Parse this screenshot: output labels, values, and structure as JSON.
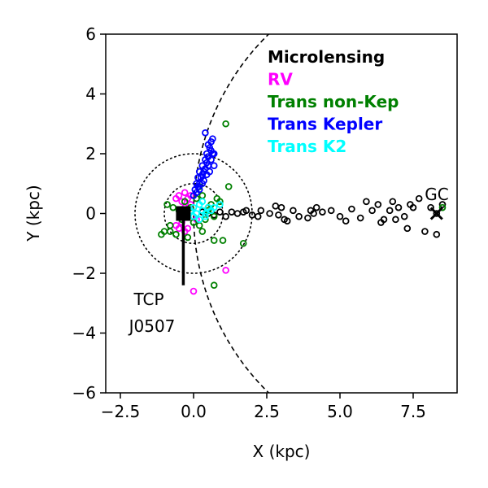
{
  "chart_data": {
    "type": "scatter",
    "xlabel": "X (kpc)",
    "ylabel": "Y (kpc)",
    "xlim": [
      -3,
      9
    ],
    "ylim": [
      -6,
      6
    ],
    "xticks": [
      -2.5,
      0.0,
      2.5,
      5.0,
      7.5
    ],
    "xtick_labels": [
      "−2.5",
      "0.0",
      "2.5",
      "5.0",
      "7.5"
    ],
    "yticks": [
      -6,
      -4,
      -2,
      0,
      2,
      4,
      6
    ],
    "ytick_labels": [
      "−6",
      "−4",
      "−2",
      "0",
      "2",
      "4",
      "6"
    ],
    "legend_position": "top-right",
    "legend": [
      {
        "label": "Microlensing",
        "color": "#000000"
      },
      {
        "label": "RV",
        "color": "#ff00ff"
      },
      {
        "label": "Trans non-Kep",
        "color": "#008000"
      },
      {
        "label": "Trans Kepler",
        "color": "#0000ff"
      },
      {
        "label": "Trans K2",
        "color": "#00ffff"
      }
    ],
    "series": [
      {
        "name": "Microlensing",
        "color": "#000000",
        "points": [
          [
            0.3,
            0.05
          ],
          [
            0.5,
            0.0
          ],
          [
            0.7,
            -0.05
          ],
          [
            0.9,
            0.05
          ],
          [
            1.1,
            -0.1
          ],
          [
            1.3,
            0.05
          ],
          [
            1.5,
            0.0
          ],
          [
            1.7,
            0.05
          ],
          [
            2.0,
            -0.05
          ],
          [
            2.3,
            0.1
          ],
          [
            2.6,
            0.0
          ],
          [
            2.9,
            -0.05
          ],
          [
            3.0,
            0.2
          ],
          [
            3.1,
            -0.2
          ],
          [
            3.4,
            0.1
          ],
          [
            3.6,
            -0.1
          ],
          [
            4.0,
            0.1
          ],
          [
            4.2,
            0.2
          ],
          [
            4.4,
            0.05
          ],
          [
            4.7,
            0.1
          ],
          [
            5.2,
            -0.25
          ],
          [
            5.4,
            0.15
          ],
          [
            5.7,
            -0.15
          ],
          [
            5.9,
            0.4
          ],
          [
            6.1,
            0.1
          ],
          [
            6.3,
            0.3
          ],
          [
            6.5,
            -0.2
          ],
          [
            6.7,
            0.1
          ],
          [
            6.8,
            0.4
          ],
          [
            7.0,
            0.2
          ],
          [
            7.2,
            -0.1
          ],
          [
            7.3,
            -0.5
          ],
          [
            7.5,
            0.2
          ],
          [
            7.7,
            0.5
          ],
          [
            7.9,
            -0.6
          ],
          [
            8.1,
            0.2
          ],
          [
            8.3,
            -0.7
          ],
          [
            8.5,
            0.3
          ],
          [
            8.3,
            0.0
          ],
          [
            7.4,
            0.3
          ],
          [
            6.9,
            -0.2
          ],
          [
            5.0,
            -0.1
          ],
          [
            4.1,
            0.0
          ],
          [
            2.8,
            0.25
          ],
          [
            2.2,
            -0.1
          ],
          [
            3.9,
            -0.15
          ],
          [
            6.4,
            -0.3
          ],
          [
            1.8,
            0.1
          ],
          [
            3.2,
            -0.25
          ]
        ]
      },
      {
        "name": "RV",
        "color": "#ff00ff",
        "points": [
          [
            -0.6,
            0.5
          ],
          [
            -0.5,
            0.6
          ],
          [
            -0.4,
            0.4
          ],
          [
            -0.3,
            0.7
          ],
          [
            -0.2,
            0.5
          ],
          [
            -0.1,
            0.6
          ],
          [
            -0.6,
            -0.4
          ],
          [
            -0.5,
            -0.5
          ],
          [
            -0.4,
            -0.3
          ],
          [
            -0.3,
            -0.6
          ],
          [
            -0.2,
            -0.5
          ],
          [
            0.0,
            -2.6
          ],
          [
            1.1,
            -1.9
          ],
          [
            -0.1,
            0.3
          ],
          [
            -0.3,
            0.2
          ],
          [
            0.1,
            -0.2
          ]
        ]
      },
      {
        "name": "Trans non-Kep",
        "color": "#008000",
        "points": [
          [
            -1.0,
            -0.6
          ],
          [
            -0.8,
            -0.4
          ],
          [
            -0.9,
            0.3
          ],
          [
            -0.7,
            0.2
          ],
          [
            -0.5,
            0.1
          ],
          [
            -0.4,
            -0.2
          ],
          [
            -0.3,
            0.4
          ],
          [
            -0.2,
            -0.1
          ],
          [
            -0.1,
            0.2
          ],
          [
            0.0,
            -0.3
          ],
          [
            0.1,
            0.5
          ],
          [
            0.2,
            -0.4
          ],
          [
            0.3,
            0.6
          ],
          [
            0.4,
            -0.2
          ],
          [
            0.5,
            0.1
          ],
          [
            0.6,
            0.3
          ],
          [
            0.7,
            -0.1
          ],
          [
            0.8,
            0.5
          ],
          [
            0.9,
            0.4
          ],
          [
            1.0,
            -0.9
          ],
          [
            1.2,
            0.9
          ],
          [
            0.7,
            -2.4
          ],
          [
            0.7,
            -0.9
          ],
          [
            1.7,
            -1.0
          ],
          [
            1.1,
            3.0
          ],
          [
            -1.1,
            -0.7
          ],
          [
            -0.6,
            -0.7
          ],
          [
            -0.2,
            -0.8
          ],
          [
            0.2,
            0.9
          ],
          [
            0.5,
            0.2
          ],
          [
            8.5,
            0.2
          ],
          [
            0.3,
            -0.6
          ],
          [
            -0.8,
            -0.6
          ]
        ]
      },
      {
        "name": "Trans Kepler",
        "color": "#0000ff",
        "points": [
          [
            0.0,
            0.6
          ],
          [
            0.05,
            0.8
          ],
          [
            0.1,
            1.0
          ],
          [
            0.15,
            1.2
          ],
          [
            0.2,
            1.0
          ],
          [
            0.2,
            1.4
          ],
          [
            0.25,
            1.2
          ],
          [
            0.3,
            1.6
          ],
          [
            0.35,
            1.4
          ],
          [
            0.4,
            1.8
          ],
          [
            0.45,
            2.0
          ],
          [
            0.5,
            1.6
          ],
          [
            0.55,
            2.2
          ],
          [
            0.6,
            1.8
          ],
          [
            0.65,
            2.0
          ],
          [
            0.6,
            2.4
          ],
          [
            0.7,
            1.6
          ],
          [
            0.4,
            2.7
          ],
          [
            0.65,
            2.5
          ],
          [
            0.3,
            1.0
          ],
          [
            0.1,
            0.7
          ],
          [
            0.2,
            0.8
          ],
          [
            0.35,
            1.1
          ],
          [
            0.45,
            1.3
          ],
          [
            0.55,
            1.4
          ],
          [
            0.4,
            1.5
          ],
          [
            0.5,
            1.9
          ],
          [
            0.3,
            1.3
          ],
          [
            0.15,
            0.9
          ],
          [
            0.6,
            2.1
          ],
          [
            0.5,
            2.3
          ],
          [
            0.7,
            2.0
          ],
          [
            0.45,
            1.7
          ]
        ]
      },
      {
        "name": "Trans K2",
        "color": "#00ffff",
        "points": [
          [
            -0.1,
            0.1
          ],
          [
            0.0,
            0.2
          ],
          [
            0.1,
            0.0
          ],
          [
            0.2,
            0.3
          ],
          [
            0.3,
            0.1
          ],
          [
            0.4,
            -0.1
          ],
          [
            0.5,
            0.2
          ],
          [
            0.6,
            0.1
          ],
          [
            0.7,
            0.2
          ],
          [
            0.9,
            0.3
          ],
          [
            0.2,
            -0.2
          ],
          [
            0.0,
            -0.1
          ],
          [
            0.3,
            0.4
          ],
          [
            0.4,
            0.0
          ]
        ]
      }
    ],
    "circles": [
      {
        "center": [
          0,
          0
        ],
        "radius": 2.0,
        "style": "dotted"
      },
      {
        "center": [
          0,
          0
        ],
        "radius": 1.0,
        "style": "dotted"
      }
    ],
    "dashed_arc": {
      "center": [
        8.3,
        0
      ],
      "radius": 8.3
    },
    "sun_marker": [
      -0.35,
      0.0
    ],
    "target": {
      "name": "TCP J0507",
      "x": -0.35,
      "y": 0.0,
      "line_to_y": -2.4,
      "label_line1": "TCP",
      "label_line2": "J0507"
    },
    "galactic_center": {
      "label": "GC",
      "x": 8.3,
      "y": 0.0
    }
  }
}
